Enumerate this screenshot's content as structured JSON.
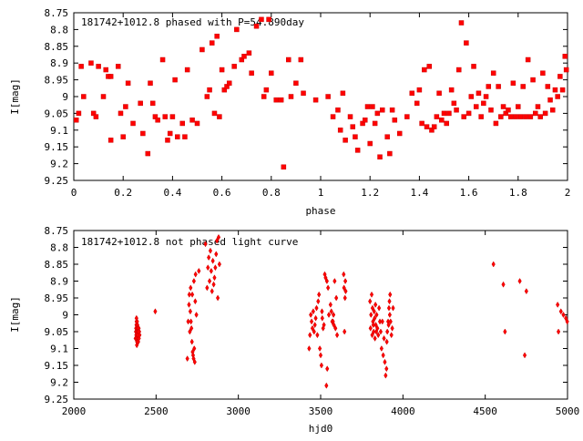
{
  "chart_data": [
    {
      "type": "scatter",
      "title": "181742+1012.8 phased with P=54.890day",
      "xlabel": "phase",
      "ylabel": "I[mag]",
      "xlim": [
        0,
        2
      ],
      "ylim": [
        8.75,
        9.25
      ],
      "y_inverted": true,
      "xticks": [
        "0",
        "0.2",
        "0.4",
        "0.6",
        "0.8",
        "1",
        "1.2",
        "1.4",
        "1.6",
        "1.8",
        "2"
      ],
      "yticks": [
        "8.75",
        "8.8",
        "8.85",
        "8.9",
        "8.95",
        "9",
        "9.05",
        "9.1",
        "9.15",
        "9.2",
        "9.25"
      ],
      "marker_color": "#ff0000",
      "points": [
        [
          0.01,
          9.07
        ],
        [
          0.02,
          9.05
        ],
        [
          0.03,
          8.91
        ],
        [
          0.04,
          9.0
        ],
        [
          0.07,
          8.9
        ],
        [
          0.08,
          9.05
        ],
        [
          0.09,
          9.06
        ],
        [
          0.1,
          8.91
        ],
        [
          0.12,
          9.0
        ],
        [
          0.13,
          8.92
        ],
        [
          0.14,
          8.94
        ],
        [
          0.15,
          8.94
        ],
        [
          0.15,
          9.13
        ],
        [
          0.18,
          8.91
        ],
        [
          0.19,
          9.05
        ],
        [
          0.2,
          9.12
        ],
        [
          0.21,
          9.03
        ],
        [
          0.22,
          8.96
        ],
        [
          0.24,
          9.08
        ],
        [
          0.27,
          9.02
        ],
        [
          0.28,
          9.11
        ],
        [
          0.3,
          9.17
        ],
        [
          0.31,
          8.96
        ],
        [
          0.32,
          9.02
        ],
        [
          0.33,
          9.06
        ],
        [
          0.34,
          9.07
        ],
        [
          0.36,
          8.89
        ],
        [
          0.37,
          9.06
        ],
        [
          0.38,
          9.13
        ],
        [
          0.39,
          9.11
        ],
        [
          0.4,
          9.06
        ],
        [
          0.41,
          8.95
        ],
        [
          0.42,
          9.12
        ],
        [
          0.44,
          9.08
        ],
        [
          0.45,
          9.12
        ],
        [
          0.46,
          8.92
        ],
        [
          0.48,
          9.07
        ],
        [
          0.5,
          9.08
        ],
        [
          0.52,
          8.86
        ],
        [
          0.54,
          9.0
        ],
        [
          0.55,
          8.98
        ],
        [
          0.56,
          8.84
        ],
        [
          0.57,
          9.05
        ],
        [
          0.58,
          8.82
        ],
        [
          0.59,
          9.06
        ],
        [
          0.6,
          8.92
        ],
        [
          0.61,
          8.98
        ],
        [
          0.62,
          8.97
        ],
        [
          0.63,
          8.96
        ],
        [
          0.65,
          8.91
        ],
        [
          0.66,
          8.8
        ],
        [
          0.68,
          8.89
        ],
        [
          0.69,
          8.88
        ],
        [
          0.71,
          8.87
        ],
        [
          0.72,
          8.93
        ],
        [
          0.74,
          8.79
        ],
        [
          0.76,
          8.77
        ],
        [
          0.77,
          9.0
        ],
        [
          0.78,
          8.98
        ],
        [
          0.79,
          8.77
        ],
        [
          0.8,
          8.93
        ],
        [
          0.82,
          9.01
        ],
        [
          0.84,
          9.01
        ],
        [
          0.85,
          9.21
        ],
        [
          0.87,
          8.89
        ],
        [
          0.88,
          9.0
        ],
        [
          0.9,
          8.96
        ],
        [
          0.92,
          8.89
        ],
        [
          0.93,
          8.99
        ],
        [
          0.98,
          9.01
        ],
        [
          1.03,
          9.0
        ],
        [
          1.05,
          9.06
        ],
        [
          1.07,
          9.04
        ],
        [
          1.08,
          9.1
        ],
        [
          1.09,
          8.99
        ],
        [
          1.1,
          9.13
        ],
        [
          1.12,
          9.06
        ],
        [
          1.13,
          9.09
        ],
        [
          1.14,
          9.12
        ],
        [
          1.15,
          9.16
        ],
        [
          1.17,
          9.08
        ],
        [
          1.18,
          9.07
        ],
        [
          1.19,
          9.03
        ],
        [
          1.2,
          9.14
        ],
        [
          1.21,
          9.03
        ],
        [
          1.22,
          9.08
        ],
        [
          1.23,
          9.05
        ],
        [
          1.24,
          9.18
        ],
        [
          1.25,
          9.04
        ],
        [
          1.27,
          9.12
        ],
        [
          1.28,
          9.17
        ],
        [
          1.29,
          9.04
        ],
        [
          1.3,
          9.07
        ],
        [
          1.32,
          9.11
        ],
        [
          1.35,
          9.06
        ],
        [
          1.37,
          8.99
        ],
        [
          1.39,
          9.02
        ],
        [
          1.4,
          8.98
        ],
        [
          1.41,
          9.08
        ],
        [
          1.42,
          8.92
        ],
        [
          1.43,
          9.09
        ],
        [
          1.44,
          8.91
        ],
        [
          1.45,
          9.1
        ],
        [
          1.46,
          9.09
        ],
        [
          1.47,
          9.06
        ],
        [
          1.48,
          8.99
        ],
        [
          1.49,
          9.07
        ],
        [
          1.5,
          9.05
        ],
        [
          1.51,
          9.08
        ],
        [
          1.52,
          9.05
        ],
        [
          1.53,
          8.98
        ],
        [
          1.54,
          9.02
        ],
        [
          1.55,
          9.04
        ],
        [
          1.56,
          8.92
        ],
        [
          1.57,
          8.78
        ],
        [
          1.58,
          9.06
        ],
        [
          1.59,
          8.84
        ],
        [
          1.6,
          9.05
        ],
        [
          1.61,
          9.0
        ],
        [
          1.62,
          8.91
        ],
        [
          1.63,
          9.03
        ],
        [
          1.64,
          8.99
        ],
        [
          1.65,
          9.06
        ],
        [
          1.66,
          9.02
        ],
        [
          1.67,
          9.0
        ],
        [
          1.68,
          8.97
        ],
        [
          1.69,
          9.04
        ],
        [
          1.7,
          8.93
        ],
        [
          1.71,
          9.08
        ],
        [
          1.72,
          8.97
        ],
        [
          1.73,
          9.06
        ],
        [
          1.74,
          9.03
        ],
        [
          1.75,
          9.05
        ],
        [
          1.76,
          9.04
        ],
        [
          1.77,
          9.06
        ],
        [
          1.78,
          8.96
        ],
        [
          1.79,
          9.06
        ],
        [
          1.8,
          9.03
        ],
        [
          1.81,
          9.06
        ],
        [
          1.82,
          8.97
        ],
        [
          1.83,
          9.06
        ],
        [
          1.84,
          8.89
        ],
        [
          1.85,
          9.06
        ],
        [
          1.86,
          8.95
        ],
        [
          1.87,
          9.05
        ],
        [
          1.88,
          9.03
        ],
        [
          1.89,
          9.06
        ],
        [
          1.9,
          8.93
        ],
        [
          1.91,
          9.05
        ],
        [
          1.92,
          8.97
        ],
        [
          1.93,
          9.01
        ],
        [
          1.94,
          9.04
        ],
        [
          1.95,
          8.98
        ],
        [
          1.96,
          9.0
        ],
        [
          1.97,
          8.94
        ],
        [
          1.98,
          8.98
        ],
        [
          1.99,
          8.88
        ],
        [
          1.995,
          8.92
        ]
      ]
    },
    {
      "type": "scatter",
      "title": "181742+1012.8 not phased light curve",
      "xlabel": "hjd0",
      "ylabel": "I[mag]",
      "xlim": [
        2000,
        5000
      ],
      "ylim": [
        8.75,
        9.25
      ],
      "y_inverted": true,
      "xticks": [
        "2000",
        "2500",
        "3000",
        "3500",
        "4000",
        "4500",
        "5000"
      ],
      "yticks": [
        "8.75",
        "8.8",
        "8.85",
        "8.9",
        "8.95",
        "9",
        "9.05",
        "9.1",
        "9.15",
        "9.2",
        "9.25"
      ],
      "marker_color": "#ff0000",
      "points": [
        [
          2375,
          9.07
        ],
        [
          2377,
          9.05
        ],
        [
          2378,
          9.04
        ],
        [
          2379,
          9.06
        ],
        [
          2380,
          9.03
        ],
        [
          2381,
          9.02
        ],
        [
          2382,
          9.07
        ],
        [
          2383,
          9.05
        ],
        [
          2384,
          9.08
        ],
        [
          2385,
          9.04
        ],
        [
          2386,
          9.06
        ],
        [
          2387,
          9.03
        ],
        [
          2388,
          9.05
        ],
        [
          2389,
          9.04
        ],
        [
          2390,
          9.07
        ],
        [
          2391,
          9.06
        ],
        [
          2392,
          9.08
        ],
        [
          2393,
          9.05
        ],
        [
          2394,
          9.06
        ],
        [
          2395,
          9.04
        ],
        [
          2396,
          9.07
        ],
        [
          2398,
          9.05
        ],
        [
          2400,
          9.06
        ],
        [
          2381,
          9.01
        ],
        [
          2383,
          9.09
        ],
        [
          2385,
          9.02
        ],
        [
          2387,
          9.08
        ],
        [
          2389,
          9.06
        ],
        [
          2391,
          9.04
        ],
        [
          2393,
          9.05
        ],
        [
          2495,
          8.99
        ],
        [
          2690,
          9.13
        ],
        [
          2695,
          9.02
        ],
        [
          2700,
          8.97
        ],
        [
          2702,
          8.94
        ],
        [
          2705,
          9.05
        ],
        [
          2708,
          8.99
        ],
        [
          2710,
          8.92
        ],
        [
          2712,
          9.02
        ],
        [
          2715,
          9.04
        ],
        [
          2718,
          9.08
        ],
        [
          2720,
          8.94
        ],
        [
          2722,
          9.11
        ],
        [
          2725,
          9.12
        ],
        [
          2728,
          9.13
        ],
        [
          2730,
          8.9
        ],
        [
          2732,
          9.1
        ],
        [
          2735,
          9.14
        ],
        [
          2738,
          8.96
        ],
        [
          2740,
          8.88
        ],
        [
          2745,
          9.0
        ],
        [
          2760,
          8.87
        ],
        [
          2800,
          8.79
        ],
        [
          2810,
          8.92
        ],
        [
          2815,
          8.86
        ],
        [
          2820,
          8.83
        ],
        [
          2825,
          8.9
        ],
        [
          2830,
          8.81
        ],
        [
          2835,
          8.87
        ],
        [
          2840,
          8.93
        ],
        [
          2845,
          8.84
        ],
        [
          2850,
          8.91
        ],
        [
          2855,
          8.89
        ],
        [
          2860,
          8.86
        ],
        [
          2865,
          8.82
        ],
        [
          2870,
          8.78
        ],
        [
          2875,
          8.95
        ],
        [
          2880,
          8.77
        ],
        [
          2885,
          8.85
        ],
        [
          3430,
          9.1
        ],
        [
          3435,
          9.06
        ],
        [
          3440,
          9.0
        ],
        [
          3445,
          9.02
        ],
        [
          3450,
          9.04
        ],
        [
          3455,
          8.99
        ],
        [
          3460,
          9.05
        ],
        [
          3465,
          9.03
        ],
        [
          3470,
          9.01
        ],
        [
          3475,
          8.98
        ],
        [
          3480,
          9.06
        ],
        [
          3485,
          8.96
        ],
        [
          3490,
          8.94
        ],
        [
          3495,
          9.1
        ],
        [
          3500,
          9.12
        ],
        [
          3505,
          9.15
        ],
        [
          3508,
          8.99
        ],
        [
          3510,
          9.01
        ],
        [
          3515,
          9.04
        ],
        [
          3520,
          9.03
        ],
        [
          3525,
          8.88
        ],
        [
          3530,
          8.89
        ],
        [
          3535,
          9.21
        ],
        [
          3538,
          8.9
        ],
        [
          3540,
          9.16
        ],
        [
          3545,
          8.92
        ],
        [
          3550,
          9.0
        ],
        [
          3560,
          8.97
        ],
        [
          3565,
          8.99
        ],
        [
          3570,
          9.02
        ],
        [
          3575,
          9.02
        ],
        [
          3578,
          9.0
        ],
        [
          3580,
          9.03
        ],
        [
          3585,
          8.9
        ],
        [
          3590,
          9.04
        ],
        [
          3595,
          8.95
        ],
        [
          3600,
          9.06
        ],
        [
          3640,
          8.88
        ],
        [
          3642,
          8.92
        ],
        [
          3645,
          9.05
        ],
        [
          3648,
          8.95
        ],
        [
          3650,
          8.9
        ],
        [
          3652,
          8.93
        ],
        [
          3800,
          8.96
        ],
        [
          3803,
          9.04
        ],
        [
          3806,
          9.0
        ],
        [
          3810,
          8.94
        ],
        [
          3813,
          9.06
        ],
        [
          3815,
          8.98
        ],
        [
          3818,
          9.02
        ],
        [
          3820,
          9.03
        ],
        [
          3822,
          9.05
        ],
        [
          3825,
          8.99
        ],
        [
          3828,
          9.01
        ],
        [
          3830,
          9.07
        ],
        [
          3833,
          8.97
        ],
        [
          3835,
          9.03
        ],
        [
          3838,
          9.05
        ],
        [
          3840,
          9.0
        ],
        [
          3845,
          9.04
        ],
        [
          3850,
          9.06
        ],
        [
          3855,
          8.98
        ],
        [
          3860,
          9.02
        ],
        [
          3865,
          9.05
        ],
        [
          3870,
          9.1
        ],
        [
          3875,
          9.02
        ],
        [
          3880,
          9.12
        ],
        [
          3885,
          9.07
        ],
        [
          3890,
          9.14
        ],
        [
          3895,
          9.18
        ],
        [
          3900,
          9.16
        ],
        [
          3902,
          9.08
        ],
        [
          3905,
          9.05
        ],
        [
          3910,
          9.02
        ],
        [
          3913,
          9.03
        ],
        [
          3915,
          8.98
        ],
        [
          3918,
          8.96
        ],
        [
          3920,
          9.0
        ],
        [
          3922,
          8.94
        ],
        [
          3925,
          9.02
        ],
        [
          3930,
          9.06
        ],
        [
          3935,
          9.04
        ],
        [
          3940,
          8.98
        ],
        [
          4550,
          8.85
        ],
        [
          4610,
          8.91
        ],
        [
          4620,
          9.05
        ],
        [
          4710,
          8.9
        ],
        [
          4740,
          9.12
        ],
        [
          4750,
          8.93
        ],
        [
          4940,
          8.97
        ],
        [
          4945,
          9.05
        ],
        [
          4960,
          8.99
        ],
        [
          4975,
          9.0
        ],
        [
          4990,
          9.01
        ],
        [
          4998,
          9.02
        ]
      ]
    }
  ]
}
